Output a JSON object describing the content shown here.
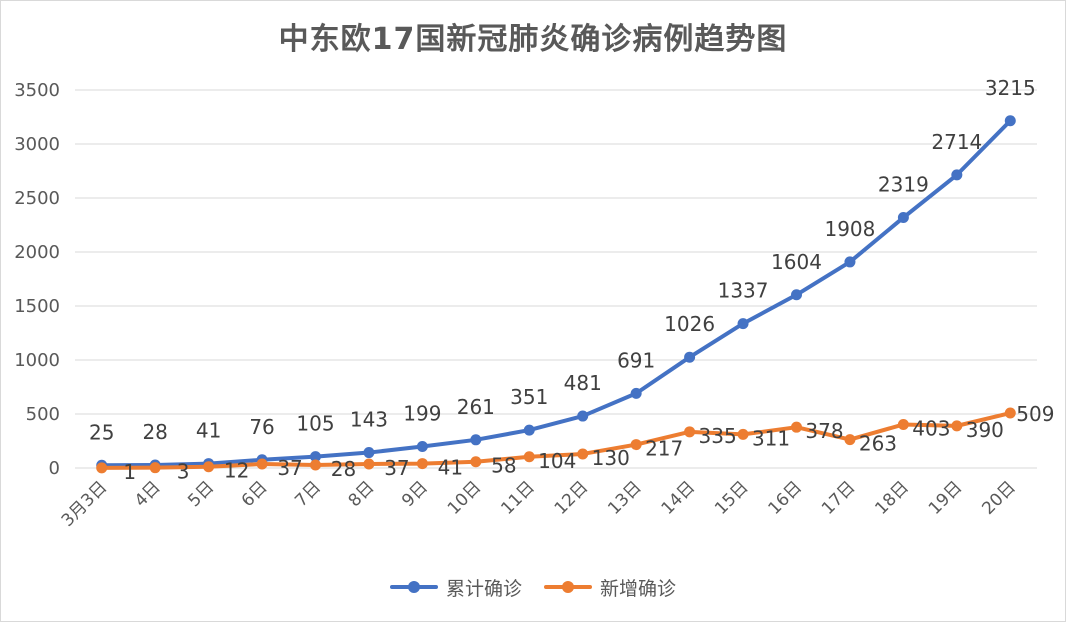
{
  "chart_data": {
    "type": "line",
    "title": "中东欧17国新冠肺炎确诊病例趋势图",
    "categories": [
      "3月3日",
      "4日",
      "5日",
      "6日",
      "7日",
      "8日",
      "9日",
      "10日",
      "11日",
      "12日",
      "13日",
      "14日",
      "15日",
      "16日",
      "17日",
      "18日",
      "19日",
      "20日"
    ],
    "series": [
      {
        "name": "累计确诊",
        "color": "#4472c4",
        "values": [
          25,
          28,
          41,
          76,
          105,
          143,
          199,
          261,
          351,
          481,
          691,
          1026,
          1337,
          1604,
          1908,
          2319,
          2714,
          3215
        ]
      },
      {
        "name": "新增确诊",
        "color": "#ed7d31",
        "values": [
          1,
          3,
          12,
          37,
          28,
          37,
          41,
          58,
          104,
          130,
          217,
          335,
          311,
          378,
          263,
          403,
          390,
          509
        ]
      }
    ],
    "ylim": [
      0,
      3500
    ],
    "yticks": [
      "0",
      "500",
      "1000",
      "1500",
      "2000",
      "2500",
      "3000",
      "3500"
    ],
    "grid": true,
    "legend": "bottom"
  }
}
